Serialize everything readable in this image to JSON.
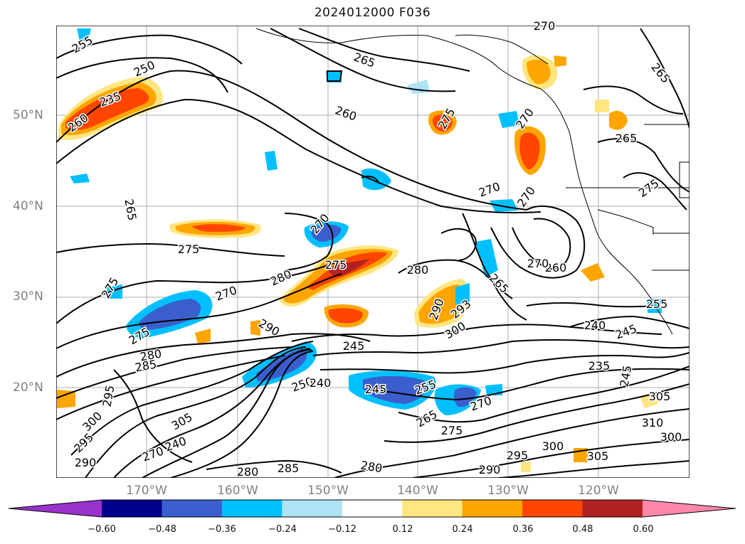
{
  "title": "2024012000 F036",
  "lat_labels": [
    "50°N",
    "40°N",
    "30°N",
    "20°N"
  ],
  "lon_labels": [
    "170°W",
    "160°W",
    "150°W",
    "140°W",
    "130°W",
    "120°W"
  ],
  "contour_labels": [
    "255",
    "250",
    "235",
    "260",
    "265",
    "260",
    "270",
    "265",
    "275",
    "270",
    "265",
    "270",
    "270",
    "275",
    "270",
    "275",
    "265",
    "275",
    "280",
    "275",
    "280",
    "270",
    "265",
    "260",
    "270",
    "290",
    "293",
    "300",
    "290",
    "275",
    "280",
    "285",
    "245",
    "240",
    "235",
    "245",
    "255",
    "245",
    "250",
    "240",
    "245",
    "255",
    "265",
    "270",
    "275",
    "280",
    "290",
    "295",
    "300",
    "305",
    "310",
    "300",
    "305",
    "300",
    "295",
    "290",
    "285",
    "280",
    "295",
    "305",
    "240",
    "270"
  ],
  "colorbar": {
    "ticks": [
      "−0.60",
      "−0.48",
      "−0.36",
      "−0.24",
      "−0.12",
      "0.12",
      "0.24",
      "0.36",
      "0.48",
      "0.60"
    ],
    "colors": [
      "#9932CC",
      "#00008B",
      "#3A5FCD",
      "#00BFFF",
      "#AEE2F5",
      "#FFFFFF",
      "#FFE680",
      "#FFA500",
      "#FF4500",
      "#B22222",
      "#FF88AA"
    ]
  }
}
